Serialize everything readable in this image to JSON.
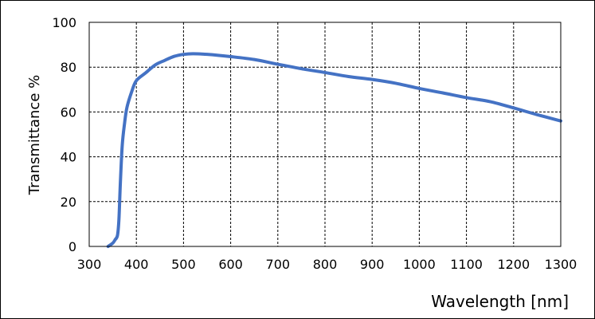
{
  "chart_data": {
    "type": "line",
    "xlabel": "Wavelength [nm]",
    "ylabel": "Transmittance %",
    "xlim": [
      300,
      1300
    ],
    "ylim": [
      0,
      100
    ],
    "x_ticks": [
      300,
      400,
      500,
      600,
      700,
      800,
      900,
      1000,
      1100,
      1200,
      1300
    ],
    "y_ticks": [
      0,
      20,
      40,
      60,
      80,
      100
    ],
    "grid": "dashed",
    "legend": "none",
    "line_color": "#4472C4",
    "series": [
      {
        "x": [
          340,
          350,
          355,
          360,
          363,
          366,
          370,
          375,
          380,
          390,
          400,
          420,
          440,
          460,
          480,
          500,
          520,
          550,
          600,
          650,
          700,
          750,
          800,
          850,
          900,
          950,
          1000,
          1050,
          1100,
          1150,
          1200,
          1250,
          1300
        ],
        "y": [
          0,
          1.5,
          3,
          5,
          12,
          28,
          45,
          55,
          62,
          69,
          74,
          77.5,
          81,
          83,
          84.8,
          85.7,
          86,
          85.7,
          84.7,
          83.4,
          81.3,
          79.3,
          77.6,
          75.8,
          74.5,
          72.8,
          70.5,
          68.5,
          66.4,
          64.6,
          61.8,
          58.8,
          56
        ]
      }
    ]
  }
}
